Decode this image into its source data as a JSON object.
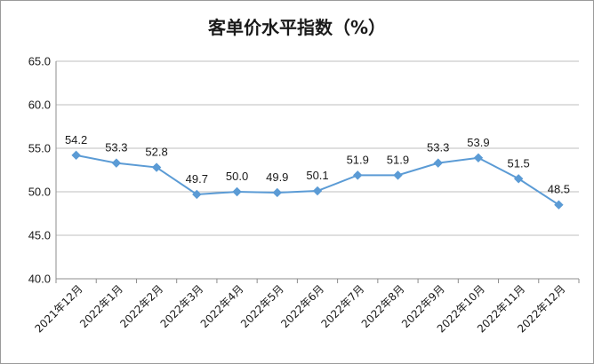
{
  "chart_data": {
    "type": "line",
    "title": "客单价水平指数（%）",
    "categories": [
      "2021年12月",
      "2022年1月",
      "2022年2月",
      "2022年3月",
      "2022年4月",
      "2022年5月",
      "2022年6月",
      "2022年7月",
      "2022年8月",
      "2022年9月",
      "2022年10月",
      "2022年11月",
      "2022年12月"
    ],
    "series": [
      {
        "values": [
          54.2,
          53.3,
          52.8,
          49.7,
          50.0,
          49.9,
          50.1,
          51.9,
          51.9,
          53.3,
          53.9,
          51.5,
          48.5
        ],
        "labels": [
          "54.2",
          "53.3",
          "52.8",
          "49.7",
          "50.0",
          "49.9",
          "50.1",
          "51.9",
          "51.9",
          "53.3",
          "53.9",
          "51.5",
          "48.5"
        ],
        "color": "#5b9bd5"
      }
    ],
    "ylim": [
      40.0,
      65.0
    ],
    "yticks": [
      "40.0",
      "45.0",
      "50.0",
      "55.0",
      "60.0",
      "65.0"
    ],
    "grid": true,
    "legend": "none"
  }
}
